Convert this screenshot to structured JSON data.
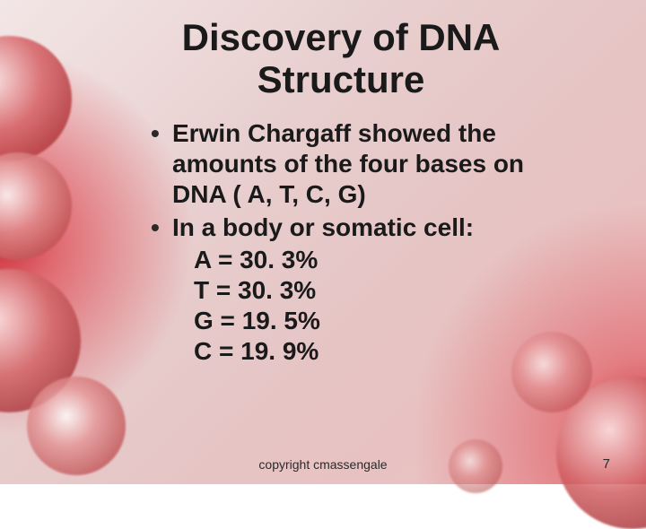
{
  "title_fontsize": 42,
  "body_fontsize": 28,
  "font_family": "Comic Sans MS",
  "text_color": "#1a1a1a",
  "bg_gradient_colors": [
    "#f3e6e6",
    "#e8cfcf",
    "#e6c4c4",
    "#ecbfbf"
  ],
  "accent_red": "#9c2025",
  "title_line1": "Discovery of DNA",
  "title_line2": "Structure",
  "bullet1_l1": "Erwin Chargaff showed the",
  "bullet1_l2": "amounts of the four bases on",
  "bullet1_l3": "DNA ( A, T, C, G)",
  "bullet2_l1": "In a body or somatic cell:",
  "bases": [
    {
      "label": "A",
      "pct": "30. 3%"
    },
    {
      "label": "T",
      "pct": "30. 3%"
    },
    {
      "label": "G",
      "pct": "19. 5%"
    },
    {
      "label": "C",
      "pct": "19. 9%"
    }
  ],
  "base_line_A": "A = 30. 3%",
  "base_line_T": "T = 30. 3%",
  "base_line_G": "G = 19. 5%",
  "base_line_C": "C = 19. 9%",
  "copyright": "copyright cmassengale",
  "page_number": "7",
  "footer_fontsize": 14
}
